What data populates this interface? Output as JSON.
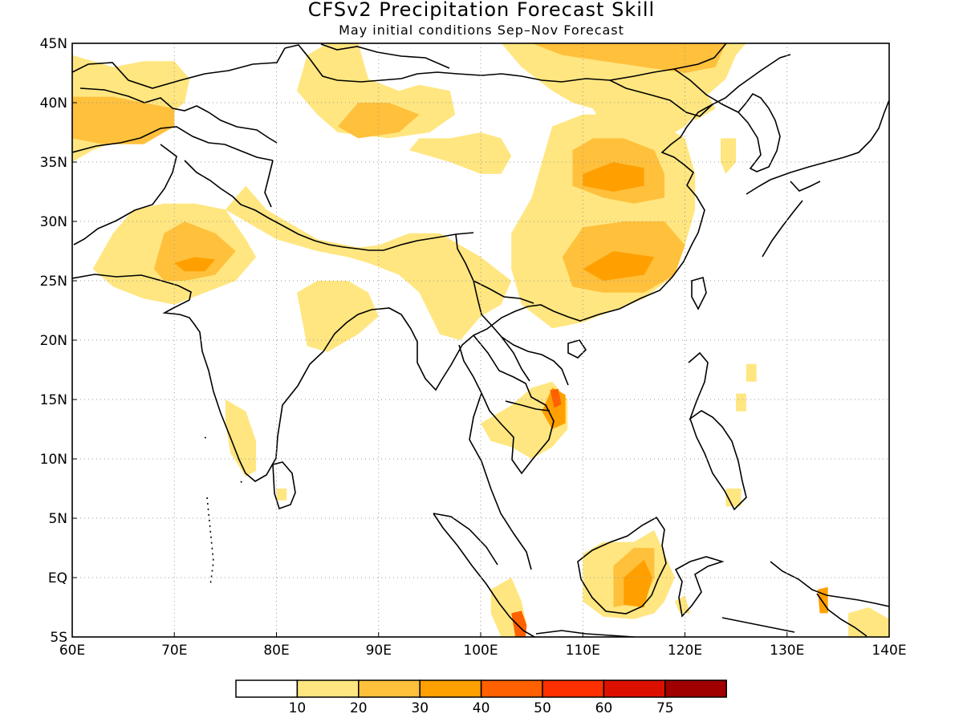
{
  "title": "CFSv2 Precipitation Forecast Skill",
  "subtitle": "May initial conditions  Sep–Nov Forecast",
  "map": {
    "lon_range": [
      60,
      140
    ],
    "lat_range": [
      -5,
      45
    ],
    "lon_ticks": [
      "60E",
      "70E",
      "80E",
      "90E",
      "100E",
      "110E",
      "120E",
      "130E",
      "140E"
    ],
    "lat_ticks": [
      "45N",
      "40N",
      "35N",
      "30N",
      "25N",
      "20N",
      "15N",
      "10N",
      "5N",
      "EQ",
      "5S"
    ],
    "grid": "dotted"
  },
  "colorbar": {
    "labels": [
      "10",
      "20",
      "30",
      "40",
      "50",
      "60",
      "75"
    ],
    "colors": [
      "#ffffff",
      "#ffe680",
      "#ffc03c",
      "#ffa000",
      "#ff6000",
      "#ff3000",
      "#dd1000",
      "#a00000"
    ]
  },
  "skill_regions": [
    {
      "level": 1,
      "points": [
        [
          60,
          44
        ],
        [
          64,
          43
        ],
        [
          67,
          43.5
        ],
        [
          70,
          43.5
        ],
        [
          71.5,
          42
        ],
        [
          71,
          40
        ],
        [
          68,
          38
        ],
        [
          65,
          37
        ],
        [
          62,
          36
        ],
        [
          60,
          35
        ]
      ]
    },
    {
      "level": 2,
      "points": [
        [
          60,
          40.5
        ],
        [
          64,
          40.5
        ],
        [
          67,
          40
        ],
        [
          70,
          39.5
        ],
        [
          70,
          38
        ],
        [
          67,
          36.5
        ],
        [
          63,
          36.5
        ],
        [
          60,
          37
        ]
      ]
    },
    {
      "level": 1,
      "points": [
        [
          82,
          41
        ],
        [
          83,
          44
        ],
        [
          85,
          45
        ],
        [
          88,
          45
        ],
        [
          89,
          42
        ],
        [
          92,
          41
        ],
        [
          94,
          41.5
        ],
        [
          97,
          41
        ],
        [
          97.5,
          39
        ],
        [
          95,
          37.5
        ],
        [
          91,
          37
        ],
        [
          86,
          37.5
        ],
        [
          84,
          39
        ]
      ]
    },
    {
      "level": 2,
      "points": [
        [
          86,
          38
        ],
        [
          88,
          40
        ],
        [
          91,
          40
        ],
        [
          94,
          39
        ],
        [
          92,
          37.5
        ],
        [
          88,
          37
        ]
      ]
    },
    {
      "level": 1,
      "points": [
        [
          93,
          36
        ],
        [
          97,
          35
        ],
        [
          100,
          34
        ],
        [
          102,
          34
        ],
        [
          103,
          35.5
        ],
        [
          102,
          37
        ],
        [
          100,
          37.5
        ],
        [
          97,
          37
        ],
        [
          94,
          37
        ]
      ]
    },
    {
      "level": 1,
      "points": [
        [
          102,
          45
        ],
        [
          104,
          43
        ],
        [
          107,
          41
        ],
        [
          109,
          40
        ],
        [
          111,
          39.5
        ],
        [
          112,
          38
        ],
        [
          111,
          36
        ],
        [
          114,
          35
        ],
        [
          116,
          36.5
        ],
        [
          118,
          37
        ],
        [
          120,
          38
        ],
        [
          121,
          39
        ],
        [
          122,
          40.5
        ],
        [
          124,
          42
        ],
        [
          125,
          44
        ],
        [
          126,
          45
        ]
      ]
    },
    {
      "level": 2,
      "points": [
        [
          105,
          45
        ],
        [
          108,
          44
        ],
        [
          112,
          43.5
        ],
        [
          116,
          43
        ],
        [
          120,
          42.5
        ],
        [
          123,
          43
        ],
        [
          124,
          45
        ]
      ]
    },
    {
      "level": 1,
      "points": [
        [
          107,
          38
        ],
        [
          106,
          35
        ],
        [
          105,
          32
        ],
        [
          103,
          29
        ],
        [
          103,
          26
        ],
        [
          104,
          23
        ],
        [
          107,
          21
        ],
        [
          110,
          21.5
        ],
        [
          113,
          22.5
        ],
        [
          116,
          23.5
        ],
        [
          119,
          25.5
        ],
        [
          120,
          28
        ],
        [
          121,
          31
        ],
        [
          121,
          34
        ],
        [
          120,
          37
        ],
        [
          117,
          38.5
        ],
        [
          113,
          39
        ],
        [
          110,
          39
        ]
      ]
    },
    {
      "level": 2,
      "points": [
        [
          109,
          36
        ],
        [
          111,
          37
        ],
        [
          114,
          37
        ],
        [
          117,
          36
        ],
        [
          118,
          34
        ],
        [
          118,
          32
        ],
        [
          115,
          31.5
        ],
        [
          112,
          32
        ],
        [
          109,
          33
        ]
      ]
    },
    {
      "level": 2,
      "points": [
        [
          108,
          27
        ],
        [
          110,
          29.5
        ],
        [
          114,
          30
        ],
        [
          118,
          30
        ],
        [
          120,
          28
        ],
        [
          119,
          25.5
        ],
        [
          116,
          24
        ],
        [
          112,
          24
        ],
        [
          109,
          24.5
        ]
      ]
    },
    {
      "level": 3,
      "points": [
        [
          110,
          34
        ],
        [
          113,
          35
        ],
        [
          116,
          34.5
        ],
        [
          116,
          33
        ],
        [
          113,
          32.5
        ],
        [
          110,
          33
        ]
      ]
    },
    {
      "level": 3,
      "points": [
        [
          110,
          26
        ],
        [
          113,
          27.5
        ],
        [
          117,
          27
        ],
        [
          116,
          25.5
        ],
        [
          112,
          25
        ]
      ]
    },
    {
      "level": 1,
      "points": [
        [
          62,
          26
        ],
        [
          64,
          29
        ],
        [
          66,
          31
        ],
        [
          69,
          31.5
        ],
        [
          72,
          31.5
        ],
        [
          75,
          31
        ],
        [
          77,
          28.5
        ],
        [
          78,
          27
        ],
        [
          76,
          25
        ],
        [
          73,
          24
        ],
        [
          70,
          23
        ],
        [
          67,
          23.5
        ],
        [
          64,
          24.5
        ]
      ]
    },
    {
      "level": 2,
      "points": [
        [
          68,
          26
        ],
        [
          69,
          29
        ],
        [
          71,
          30
        ],
        [
          74,
          29
        ],
        [
          76,
          27.5
        ],
        [
          74,
          25.5
        ],
        [
          71,
          25
        ],
        [
          69,
          25
        ]
      ]
    },
    {
      "level": 3,
      "points": [
        [
          70,
          26.5
        ],
        [
          72,
          27
        ],
        [
          74,
          26.8
        ],
        [
          73,
          25.8
        ],
        [
          71,
          25.8
        ]
      ]
    },
    {
      "level": 1,
      "points": [
        [
          75,
          31
        ],
        [
          77,
          33
        ],
        [
          79,
          31
        ],
        [
          81,
          30
        ],
        [
          84,
          28.5
        ],
        [
          88,
          27.8
        ],
        [
          90,
          28
        ],
        [
          93,
          29
        ],
        [
          96,
          29
        ],
        [
          98,
          28
        ],
        [
          100,
          27
        ],
        [
          103,
          25
        ],
        [
          102,
          23
        ],
        [
          100,
          22
        ],
        [
          98,
          20
        ],
        [
          96,
          20.5
        ],
        [
          94,
          24
        ],
        [
          92,
          25.5
        ],
        [
          89,
          26.5
        ],
        [
          87,
          27
        ],
        [
          84,
          27.5
        ],
        [
          80,
          28.5
        ]
      ]
    },
    {
      "level": 1,
      "points": [
        [
          82,
          24
        ],
        [
          84,
          25
        ],
        [
          87,
          25
        ],
        [
          89,
          24
        ],
        [
          90,
          22
        ],
        [
          88,
          20.5
        ],
        [
          85,
          19
        ],
        [
          83,
          19.5
        ]
      ]
    },
    {
      "level": 1,
      "points": [
        [
          75,
          15
        ],
        [
          77,
          14
        ],
        [
          78,
          11.5
        ],
        [
          78,
          9
        ],
        [
          77,
          8.5
        ],
        [
          75.5,
          10.5
        ],
        [
          75,
          13
        ]
      ]
    },
    {
      "level": 1,
      "points": [
        [
          100,
          13
        ],
        [
          103,
          14.5
        ],
        [
          105,
          16
        ],
        [
          107,
          16.5
        ],
        [
          108.5,
          15
        ],
        [
          108.5,
          12.5
        ],
        [
          107,
          11
        ],
        [
          105,
          10
        ],
        [
          103,
          11
        ],
        [
          101,
          11.5
        ]
      ]
    },
    {
      "level": 3,
      "points": [
        [
          106,
          14
        ],
        [
          107,
          16
        ],
        [
          108.3,
          15.4
        ],
        [
          108.3,
          13
        ],
        [
          107,
          12.5
        ]
      ]
    },
    {
      "level": 4,
      "points": [
        [
          106.8,
          15.8
        ],
        [
          107.6,
          15.9
        ],
        [
          107.9,
          14.6
        ],
        [
          107.2,
          14.3
        ]
      ]
    },
    {
      "level": 1,
      "points": [
        [
          110,
          2
        ],
        [
          112,
          3
        ],
        [
          115,
          3
        ],
        [
          117,
          4
        ],
        [
          118,
          2
        ],
        [
          119,
          0
        ],
        [
          118,
          -2
        ],
        [
          117,
          -3
        ],
        [
          115,
          -3.5
        ],
        [
          112,
          -3.3
        ],
        [
          110,
          -2
        ]
      ]
    },
    {
      "level": 2,
      "points": [
        [
          113,
          1
        ],
        [
          115,
          2.5
        ],
        [
          117,
          2.5
        ],
        [
          117,
          0
        ],
        [
          116,
          -2
        ],
        [
          113,
          -2.5
        ]
      ]
    },
    {
      "level": 3,
      "points": [
        [
          114,
          0
        ],
        [
          116,
          1.5
        ],
        [
          116.8,
          0
        ],
        [
          116,
          -2.5
        ],
        [
          114,
          -2.3
        ]
      ]
    },
    {
      "level": 1,
      "points": [
        [
          101,
          -1
        ],
        [
          103,
          0
        ],
        [
          104,
          -2
        ],
        [
          104.5,
          -4
        ],
        [
          104.3,
          -5
        ],
        [
          102,
          -5
        ],
        [
          101,
          -3
        ]
      ]
    },
    {
      "level": 4,
      "points": [
        [
          103,
          -3
        ],
        [
          104,
          -2.8
        ],
        [
          104.5,
          -4
        ],
        [
          104.4,
          -5
        ],
        [
          103.4,
          -5
        ]
      ]
    },
    {
      "level": 1,
      "points": [
        [
          136,
          -3
        ],
        [
          138,
          -2.5
        ],
        [
          140,
          -3.5
        ],
        [
          140,
          -5
        ],
        [
          136,
          -5
        ]
      ]
    },
    {
      "level": 3,
      "points": [
        [
          133,
          -1
        ],
        [
          134,
          -0.8
        ],
        [
          134,
          -3
        ],
        [
          133.2,
          -3
        ]
      ]
    },
    {
      "level": 1,
      "points": [
        [
          119,
          -2
        ],
        [
          120,
          -1.5
        ],
        [
          120.5,
          -3
        ],
        [
          119.5,
          -3
        ]
      ]
    },
    {
      "level": 1,
      "points": [
        [
          126,
          18
        ],
        [
          127,
          18
        ],
        [
          127,
          16.5
        ],
        [
          126,
          16.5
        ]
      ]
    },
    {
      "level": 1,
      "points": [
        [
          125,
          15.5
        ],
        [
          126,
          15.5
        ],
        [
          126,
          14
        ],
        [
          125,
          14
        ]
      ]
    },
    {
      "level": 1,
      "points": [
        [
          124,
          7.5
        ],
        [
          125.5,
          7.5
        ],
        [
          125.5,
          6
        ],
        [
          124,
          6
        ]
      ]
    },
    {
      "level": 1,
      "points": [
        [
          80,
          7.5
        ],
        [
          81,
          7.5
        ],
        [
          81,
          6.5
        ],
        [
          80,
          6.5
        ]
      ]
    },
    {
      "level": 1,
      "points": [
        [
          123.5,
          37
        ],
        [
          125,
          37
        ],
        [
          125,
          35
        ],
        [
          124,
          34
        ],
        [
          123.5,
          35
        ]
      ]
    },
    {
      "level": 1,
      "points": [
        [
          120,
          40.5
        ],
        [
          122,
          41
        ],
        [
          123,
          39.5
        ],
        [
          121,
          38.5
        ]
      ]
    }
  ]
}
